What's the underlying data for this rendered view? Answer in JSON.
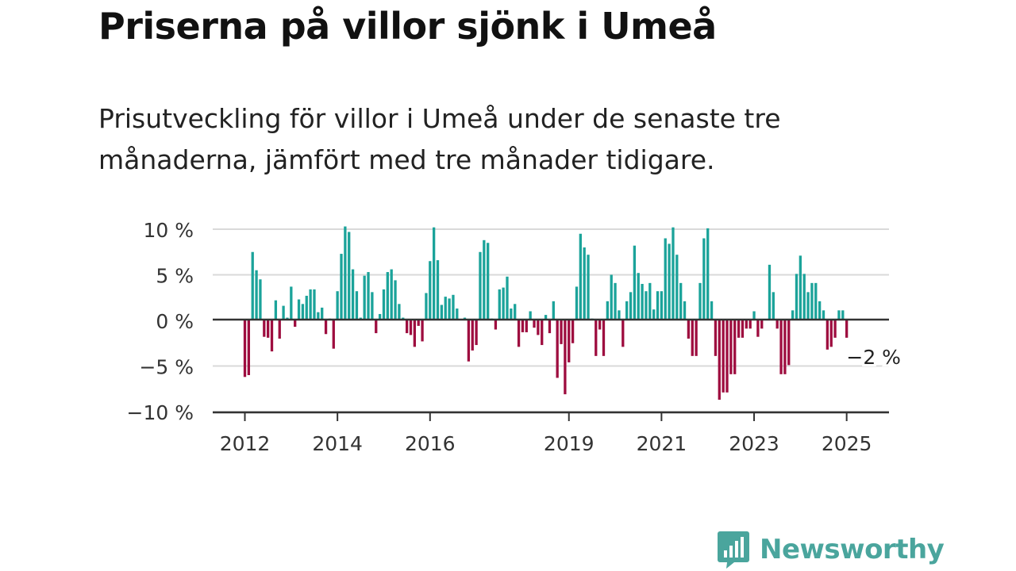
{
  "title": "Priserna på villor sjönk i Umeå",
  "subtitle": "Prisutveckling för villor i Umeå under de senaste tre månaderna, jämfört med tre månader tidigare.",
  "brand": {
    "name": "Newsworthy",
    "icon": "newsworthy-bar-chart-logo-icon",
    "color": "#4aa59d"
  },
  "colors": {
    "positive": "#1ba39a",
    "negative": "#9e0d3f",
    "grid": "#d9d9d9",
    "axis": "#333333",
    "text": "#333333"
  },
  "chart_data": {
    "type": "bar",
    "x_start": "2012-01",
    "x_unit": "month",
    "ylim": [
      -10,
      10
    ],
    "y_ticks": [
      10,
      5,
      0,
      -5,
      -10
    ],
    "y_tick_labels": [
      "10 %",
      "5 %",
      "0 %",
      "−5 %",
      "−10 %"
    ],
    "x_ticks": [
      "2012",
      "2014",
      "2016",
      "2019",
      "2021",
      "2023",
      "2025"
    ],
    "grid": true,
    "last_value_label": "−2 %",
    "values": [
      -6.2,
      -6.0,
      7.5,
      5.5,
      4.5,
      -1.8,
      -1.9,
      -3.4,
      2.2,
      -2.0,
      1.6,
      0.3,
      3.7,
      -0.7,
      2.3,
      1.8,
      2.7,
      3.4,
      3.4,
      0.9,
      1.4,
      -1.5,
      0.2,
      -3.1,
      3.2,
      7.3,
      10.3,
      9.7,
      5.6,
      3.2,
      0.3,
      4.9,
      5.3,
      3.1,
      -1.4,
      0.7,
      3.4,
      5.3,
      5.6,
      4.4,
      1.8,
      0.3,
      -1.4,
      -1.6,
      -2.9,
      -0.6,
      -2.3,
      3.0,
      6.5,
      10.2,
      6.6,
      1.7,
      2.6,
      2.4,
      2.8,
      1.3,
      0.1,
      0.3,
      -4.5,
      -3.3,
      -2.7,
      7.5,
      8.8,
      8.5,
      0.2,
      -1.0,
      3.4,
      3.6,
      4.8,
      1.3,
      1.8,
      -2.9,
      -1.3,
      -1.3,
      1.0,
      -0.8,
      -1.6,
      -2.7,
      0.6,
      -1.4,
      2.1,
      -6.3,
      -2.6,
      -8.1,
      -4.6,
      -2.5,
      3.7,
      9.5,
      8.0,
      7.2,
      0.2,
      -3.9,
      -1.0,
      -3.9,
      2.1,
      5.0,
      4.1,
      1.1,
      -2.9,
      2.1,
      3.1,
      8.2,
      5.2,
      4.0,
      3.2,
      4.1,
      1.2,
      3.2,
      3.2,
      9.0,
      8.4,
      10.2,
      7.2,
      4.1,
      2.1,
      -2.0,
      -3.9,
      -3.9,
      4.1,
      9.0,
      10.1,
      2.1,
      -3.9,
      -8.7,
      -7.9,
      -7.9,
      -5.9,
      -5.9,
      -1.9,
      -1.9,
      -0.9,
      -0.9,
      1.0,
      -1.8,
      -0.9,
      0.1,
      6.1,
      3.1,
      -0.9,
      -5.9,
      -5.9,
      -4.9,
      1.1,
      5.1,
      7.1,
      5.1,
      3.1,
      4.1,
      4.1,
      2.1,
      1.1,
      -3.2,
      -2.9,
      -1.9,
      1.1,
      1.1,
      -1.9
    ]
  }
}
